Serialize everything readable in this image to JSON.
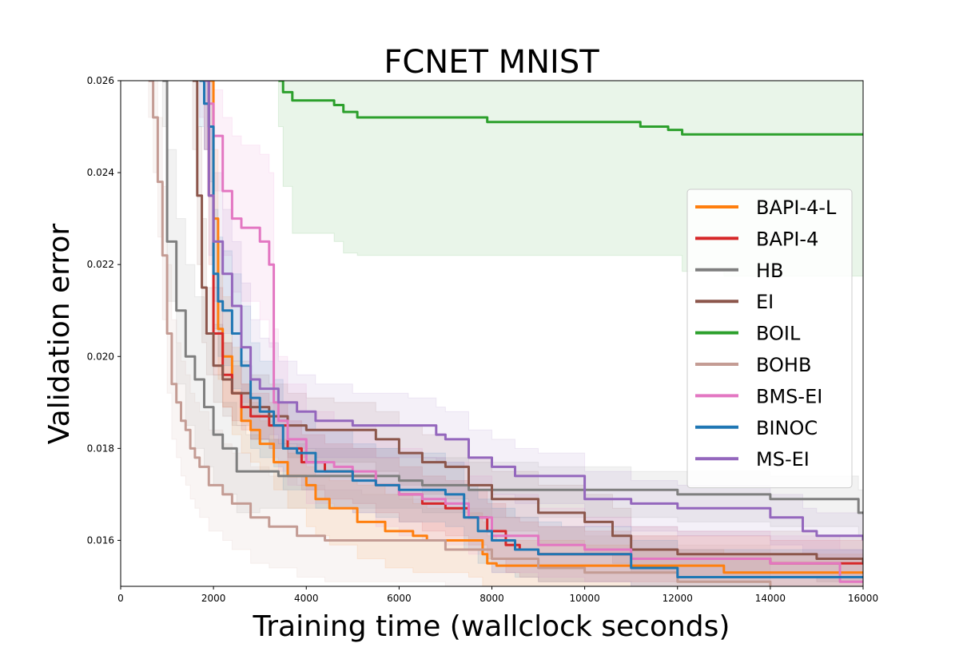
{
  "chart_data": {
    "type": "line",
    "title": "FCNET MNIST",
    "xlabel": "Training time (wallclock seconds)",
    "ylabel": "Validation error",
    "xlim": [
      0,
      16000
    ],
    "ylim": [
      0.015,
      0.026
    ],
    "xticks": [
      0,
      2000,
      4000,
      6000,
      8000,
      10000,
      12000,
      14000,
      16000
    ],
    "xtick_labels": [
      "0",
      "2000",
      "4000",
      "6000",
      "8000",
      "10000",
      "12000",
      "14000",
      "16000"
    ],
    "yticks": [
      0.016,
      0.018,
      0.02,
      0.022,
      0.024,
      0.026
    ],
    "ytick_labels": [
      "0.016",
      "0.018",
      "0.020",
      "0.022",
      "0.024",
      "0.026"
    ],
    "legend_position": "center-right",
    "series": [
      {
        "name": "BAPI-4-L",
        "color": "#ff7f0e",
        "x": [
          1900,
          2000,
          2100,
          2200,
          2400,
          2600,
          2800,
          3000,
          3300,
          3600,
          4000,
          4200,
          4500,
          5100,
          5700,
          6300,
          6600,
          7500,
          7800,
          7900,
          8100,
          9000,
          10000,
          11000,
          12000,
          13000,
          16000
        ],
        "y": [
          0.026,
          0.023,
          0.0206,
          0.02,
          0.0192,
          0.0186,
          0.0184,
          0.0181,
          0.0177,
          0.0174,
          0.0172,
          0.0169,
          0.0167,
          0.0164,
          0.0162,
          0.0161,
          0.016,
          0.016,
          0.0157,
          0.0155,
          0.01545,
          0.01545,
          0.01545,
          0.01545,
          0.01545,
          0.0153,
          0.0153
        ],
        "band_upper": [
          0.026,
          0.0245,
          0.0225,
          0.0213,
          0.0202,
          0.0194,
          0.019,
          0.0186,
          0.0182,
          0.0179,
          0.0176,
          0.0174,
          0.0173,
          0.0172,
          0.017,
          0.0168,
          0.0167,
          0.0166,
          0.0164,
          0.0161,
          0.016,
          0.016,
          0.0159,
          0.0158,
          0.0158,
          0.0157,
          0.0157
        ],
        "band_lower": [
          0.025,
          0.0215,
          0.0195,
          0.0189,
          0.0183,
          0.0179,
          0.0177,
          0.0175,
          0.0171,
          0.0167,
          0.0163,
          0.0161,
          0.0159,
          0.0156,
          0.0154,
          0.0153,
          0.0153,
          0.0152,
          0.015,
          0.015,
          0.015,
          0.015,
          0.015,
          0.015,
          0.015,
          0.015,
          0.015
        ]
      },
      {
        "name": "BAPI-4",
        "color": "#d62728",
        "x": [
          1800,
          1900,
          2000,
          2200,
          2400,
          2600,
          2800,
          3200,
          3600,
          3900,
          4400,
          5000,
          5500,
          6000,
          6500,
          7000,
          7500,
          7900,
          8300,
          8600,
          9000,
          10000,
          11000,
          12000,
          14000,
          16000
        ],
        "y": [
          0.026,
          0.0235,
          0.0205,
          0.0196,
          0.0192,
          0.0189,
          0.0187,
          0.0185,
          0.018,
          0.0177,
          0.0175,
          0.0174,
          0.0172,
          0.017,
          0.0168,
          0.0167,
          0.0165,
          0.0162,
          0.0159,
          0.0158,
          0.0157,
          0.0157,
          0.0156,
          0.0156,
          0.0155,
          0.0155
        ],
        "band_upper": [
          0.026,
          0.025,
          0.0215,
          0.0203,
          0.0198,
          0.0194,
          0.0192,
          0.019,
          0.0186,
          0.0183,
          0.0181,
          0.018,
          0.0178,
          0.0176,
          0.0174,
          0.0173,
          0.0171,
          0.0168,
          0.0165,
          0.0164,
          0.0163,
          0.0162,
          0.0161,
          0.0161,
          0.016,
          0.016
        ],
        "band_lower": [
          0.0245,
          0.022,
          0.0196,
          0.0189,
          0.0186,
          0.0184,
          0.0182,
          0.018,
          0.0174,
          0.0171,
          0.0169,
          0.0168,
          0.0166,
          0.0164,
          0.0162,
          0.0161,
          0.0159,
          0.0156,
          0.0153,
          0.0152,
          0.0151,
          0.0151,
          0.0151,
          0.0151,
          0.015,
          0.015
        ]
      },
      {
        "name": "HB",
        "color": "#7f7f7f",
        "x": [
          900,
          1000,
          1200,
          1400,
          1600,
          1800,
          2000,
          2200,
          2500,
          2700,
          3000,
          3400,
          4000,
          5000,
          6000,
          6500,
          7000,
          7500,
          8000,
          9000,
          10000,
          11000,
          12000,
          14000,
          15500,
          15900,
          16000
        ],
        "y": [
          0.026,
          0.0225,
          0.021,
          0.02,
          0.0195,
          0.0189,
          0.0183,
          0.018,
          0.0175,
          0.0175,
          0.0175,
          0.0174,
          0.0174,
          0.0174,
          0.0173,
          0.0172,
          0.0172,
          0.0171,
          0.0171,
          0.0171,
          0.0171,
          0.0171,
          0.017,
          0.0169,
          0.0169,
          0.0166,
          0.0166
        ],
        "band_upper": [
          0.026,
          0.0245,
          0.023,
          0.022,
          0.0213,
          0.0205,
          0.0196,
          0.019,
          0.0185,
          0.0183,
          0.0182,
          0.0181,
          0.018,
          0.018,
          0.0179,
          0.0178,
          0.0178,
          0.0177,
          0.0177,
          0.0176,
          0.0176,
          0.0175,
          0.0175,
          0.0174,
          0.0174,
          0.0171,
          0.0171
        ],
        "band_lower": [
          0.025,
          0.0212,
          0.0194,
          0.0185,
          0.018,
          0.0176,
          0.0172,
          0.017,
          0.0166,
          0.0166,
          0.0167,
          0.0167,
          0.0167,
          0.0167,
          0.0167,
          0.0166,
          0.0166,
          0.0165,
          0.0165,
          0.0165,
          0.0165,
          0.0165,
          0.0164,
          0.0163,
          0.0163,
          0.0161,
          0.0161
        ]
      },
      {
        "name": "EI",
        "color": "#8c564b",
        "x": [
          1550,
          1650,
          1750,
          1850,
          2000,
          2200,
          2400,
          2800,
          3200,
          3600,
          4000,
          4600,
          5500,
          6000,
          6500,
          7000,
          7500,
          8000,
          9000,
          10000,
          10600,
          11000,
          12000,
          14000,
          15000,
          16000
        ],
        "y": [
          0.026,
          0.0235,
          0.0215,
          0.0205,
          0.0198,
          0.0195,
          0.0192,
          0.0189,
          0.0187,
          0.0185,
          0.0184,
          0.0184,
          0.0182,
          0.0179,
          0.0177,
          0.0176,
          0.0172,
          0.0169,
          0.0166,
          0.0164,
          0.0161,
          0.0158,
          0.0157,
          0.0157,
          0.0156,
          0.0155
        ],
        "band_upper": [
          0.026,
          0.025,
          0.023,
          0.0215,
          0.0207,
          0.0203,
          0.0199,
          0.0196,
          0.0194,
          0.0192,
          0.0191,
          0.019,
          0.0188,
          0.0185,
          0.0183,
          0.0182,
          0.0178,
          0.0175,
          0.0172,
          0.017,
          0.0167,
          0.0163,
          0.0162,
          0.0162,
          0.0161,
          0.016
        ],
        "band_lower": [
          0.0245,
          0.022,
          0.0203,
          0.0196,
          0.019,
          0.0187,
          0.0185,
          0.0182,
          0.018,
          0.0178,
          0.0177,
          0.0177,
          0.0175,
          0.0172,
          0.017,
          0.0169,
          0.0165,
          0.0162,
          0.0159,
          0.0157,
          0.0155,
          0.0153,
          0.0152,
          0.0152,
          0.0151,
          0.015
        ]
      },
      {
        "name": "BOIL",
        "color": "#2ca02c",
        "x": [
          3400,
          3500,
          3700,
          4300,
          4600,
          4800,
          5100,
          7700,
          7900,
          8500,
          10700,
          11200,
          11800,
          12100,
          13000,
          16000
        ],
        "y": [
          0.026,
          0.02575,
          0.02557,
          0.02557,
          0.02547,
          0.02532,
          0.0252,
          0.0252,
          0.0251,
          0.0251,
          0.0251,
          0.025,
          0.02493,
          0.02483,
          0.02483,
          0.02483
        ],
        "band_upper": [
          0.026,
          0.026,
          0.026,
          0.026,
          0.026,
          0.026,
          0.026,
          0.026,
          0.026,
          0.026,
          0.026,
          0.026,
          0.026,
          0.026,
          0.026,
          0.026
        ],
        "band_lower": [
          0.025,
          0.0237,
          0.02268,
          0.02268,
          0.0225,
          0.02225,
          0.0222,
          0.0222,
          0.0222,
          0.0222,
          0.0222,
          0.0222,
          0.0222,
          0.02185,
          0.02175,
          0.02175
        ]
      },
      {
        "name": "BOHB",
        "color": "#c49c94",
        "x": [
          600,
          700,
          800,
          900,
          1000,
          1100,
          1200,
          1300,
          1400,
          1500,
          1600,
          1700,
          1900,
          2200,
          2400,
          2800,
          3200,
          3800,
          4400,
          5200,
          6000,
          7000,
          8000,
          9000,
          10000,
          12000,
          14000
        ],
        "y": [
          0.026,
          0.0252,
          0.0238,
          0.0222,
          0.0205,
          0.0194,
          0.019,
          0.0186,
          0.0184,
          0.018,
          0.0178,
          0.0176,
          0.0172,
          0.017,
          0.0168,
          0.0165,
          0.0163,
          0.0161,
          0.016,
          0.016,
          0.016,
          0.0158,
          0.0156,
          0.0154,
          0.0153,
          0.0151,
          0.015
        ],
        "band_upper": [
          0.026,
          0.026,
          0.0252,
          0.0237,
          0.022,
          0.0208,
          0.0203,
          0.0199,
          0.0196,
          0.0192,
          0.019,
          0.0188,
          0.0184,
          0.0181,
          0.0179,
          0.0176,
          0.0174,
          0.0172,
          0.0171,
          0.017,
          0.0169,
          0.0167,
          0.0165,
          0.0163,
          0.0161,
          0.0159,
          0.0158
        ],
        "band_lower": [
          0.0252,
          0.024,
          0.0226,
          0.0208,
          0.0192,
          0.0182,
          0.0178,
          0.0174,
          0.0172,
          0.0169,
          0.0167,
          0.0165,
          0.0162,
          0.016,
          0.0158,
          0.0155,
          0.0154,
          0.0152,
          0.0151,
          0.0151,
          0.0151,
          0.015,
          0.015,
          0.015,
          0.015,
          0.015,
          0.015
        ]
      },
      {
        "name": "BMS-EI",
        "color": "#e377c2",
        "x": [
          1700,
          1800,
          2000,
          2200,
          2400,
          2600,
          2800,
          3000,
          3200,
          3300,
          3400,
          3600,
          4000,
          4600,
          5000,
          5500,
          6000,
          6500,
          7000,
          7500,
          8000,
          9000,
          10000,
          11000,
          12000,
          14000,
          15500,
          16000
        ],
        "y": [
          0.026,
          0.0255,
          0.0248,
          0.0236,
          0.023,
          0.0228,
          0.0228,
          0.0225,
          0.022,
          0.019,
          0.0186,
          0.0182,
          0.0177,
          0.0176,
          0.0175,
          0.0172,
          0.017,
          0.0169,
          0.0168,
          0.0165,
          0.0161,
          0.0159,
          0.0158,
          0.0156,
          0.0156,
          0.0155,
          0.0151,
          0.0151
        ],
        "band_upper": [
          0.026,
          0.026,
          0.0258,
          0.0252,
          0.0248,
          0.0246,
          0.0246,
          0.0244,
          0.024,
          0.0206,
          0.02,
          0.0194,
          0.0188,
          0.0186,
          0.0185,
          0.0182,
          0.018,
          0.0178,
          0.0177,
          0.0174,
          0.017,
          0.0167,
          0.0165,
          0.0163,
          0.0162,
          0.0161,
          0.0158,
          0.0158
        ],
        "band_lower": [
          0.0252,
          0.0245,
          0.0236,
          0.0222,
          0.0214,
          0.0212,
          0.0212,
          0.0208,
          0.0202,
          0.0178,
          0.0175,
          0.0172,
          0.0168,
          0.0167,
          0.0166,
          0.0163,
          0.0161,
          0.016,
          0.0159,
          0.0157,
          0.0153,
          0.0152,
          0.0151,
          0.015,
          0.015,
          0.015,
          0.015,
          0.015
        ]
      },
      {
        "name": "BINOC",
        "color": "#1f77b4",
        "x": [
          1700,
          1800,
          1900,
          2000,
          2100,
          2200,
          2400,
          2600,
          2800,
          3000,
          3300,
          3500,
          3800,
          4200,
          5000,
          5500,
          6000,
          7000,
          7400,
          7700,
          8000,
          8500,
          9000,
          9500,
          10000,
          11000,
          12000,
          16000
        ],
        "y": [
          0.026,
          0.0255,
          0.025,
          0.0218,
          0.0212,
          0.021,
          0.0205,
          0.0198,
          0.0191,
          0.0188,
          0.0185,
          0.018,
          0.0179,
          0.0175,
          0.0173,
          0.0172,
          0.0171,
          0.017,
          0.0165,
          0.0162,
          0.016,
          0.0158,
          0.0157,
          0.0157,
          0.0157,
          0.0154,
          0.0152,
          0.0152
        ],
        "band_upper": [
          0.026,
          0.026,
          0.026,
          0.0232,
          0.0226,
          0.0223,
          0.0218,
          0.0211,
          0.0203,
          0.0199,
          0.0195,
          0.019,
          0.0188,
          0.0184,
          0.0181,
          0.018,
          0.0179,
          0.0177,
          0.0172,
          0.0169,
          0.0167,
          0.0165,
          0.0164,
          0.0163,
          0.0163,
          0.016,
          0.0158,
          0.0158
        ],
        "band_lower": [
          0.025,
          0.0245,
          0.0238,
          0.0206,
          0.02,
          0.0198,
          0.0193,
          0.0186,
          0.018,
          0.0178,
          0.0176,
          0.0171,
          0.0171,
          0.0167,
          0.0166,
          0.0165,
          0.0164,
          0.0163,
          0.0158,
          0.0155,
          0.0153,
          0.0152,
          0.0151,
          0.0151,
          0.0151,
          0.015,
          0.015,
          0.015
        ]
      },
      {
        "name": "MS-EI",
        "color": "#9467bd",
        "x": [
          1800,
          1900,
          2000,
          2200,
          2400,
          2600,
          2800,
          3000,
          3200,
          3400,
          3800,
          4200,
          5000,
          5800,
          6200,
          6800,
          7000,
          7500,
          8000,
          8500,
          9000,
          9500,
          10000,
          11000,
          12000,
          14000,
          14700,
          15000,
          16000
        ],
        "y": [
          0.026,
          0.0235,
          0.0225,
          0.0218,
          0.0211,
          0.0202,
          0.0195,
          0.0193,
          0.0193,
          0.019,
          0.0188,
          0.0186,
          0.0185,
          0.0185,
          0.0185,
          0.0183,
          0.0182,
          0.0178,
          0.0176,
          0.0174,
          0.0174,
          0.0174,
          0.0169,
          0.0168,
          0.0167,
          0.0165,
          0.0162,
          0.0161,
          0.016
        ],
        "band_upper": [
          0.026,
          0.025,
          0.024,
          0.0232,
          0.0225,
          0.0216,
          0.0208,
          0.0204,
          0.0203,
          0.0199,
          0.0196,
          0.0194,
          0.0192,
          0.0192,
          0.0191,
          0.0189,
          0.0188,
          0.0184,
          0.0182,
          0.018,
          0.0179,
          0.0179,
          0.0175,
          0.0173,
          0.0172,
          0.017,
          0.0167,
          0.0166,
          0.0165
        ],
        "band_lower": [
          0.0245,
          0.0222,
          0.0212,
          0.0205,
          0.0199,
          0.019,
          0.0184,
          0.0182,
          0.0183,
          0.0181,
          0.018,
          0.0178,
          0.0178,
          0.0178,
          0.0178,
          0.0177,
          0.0176,
          0.0172,
          0.017,
          0.0168,
          0.0168,
          0.0168,
          0.0163,
          0.0162,
          0.0161,
          0.0159,
          0.0157,
          0.0156,
          0.0155
        ]
      }
    ]
  }
}
